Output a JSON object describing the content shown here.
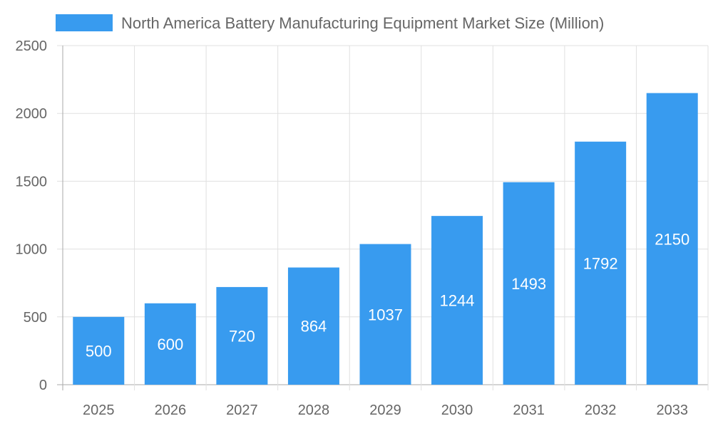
{
  "chart_data": {
    "type": "bar",
    "categories": [
      "2025",
      "2026",
      "2027",
      "2028",
      "2029",
      "2030",
      "2031",
      "2032",
      "2033"
    ],
    "series": [
      {
        "name": "North America Battery Manufacturing Equipment Market Size (Million)",
        "values": [
          500,
          600,
          720,
          864,
          1037,
          1244,
          1493,
          1792,
          2150
        ]
      }
    ],
    "data_labels": [
      "500",
      "600",
      "720",
      "864",
      "1037",
      "1244",
      "1493",
      "1792",
      "2150"
    ],
    "yticks": [
      "0",
      "500",
      "1000",
      "1500",
      "2000",
      "2500"
    ],
    "ylim": [
      0,
      2500
    ],
    "grid": true,
    "legend_position": "top",
    "colors": {
      "bar": "#389BEF",
      "grid": "#e0e0e0",
      "text": "#666666",
      "label": "#ffffff"
    }
  }
}
